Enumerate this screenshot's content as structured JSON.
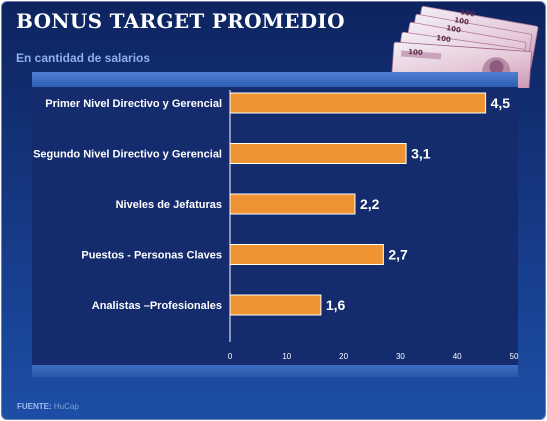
{
  "header": {
    "title": "BONUS TARGET PROMEDIO",
    "subtitle": "En cantidad de salarios"
  },
  "banknote": {
    "denomination": "100"
  },
  "chart_data": {
    "type": "bar",
    "orientation": "horizontal",
    "title": "",
    "xlabel": "",
    "ylabel": "",
    "categories": [
      "Primer Nivel Directivo y Gerencial",
      "Segundo Nivel Directivo y Gerencial",
      "Niveles de Jefaturas",
      "Puestos - Personas Claves",
      "Analistas –Profesionales"
    ],
    "values": [
      4.5,
      3.1,
      2.2,
      2.7,
      1.6
    ],
    "value_labels": [
      "4,5",
      "3,1",
      "2,2",
      "2,7",
      "1,6"
    ],
    "axis_scale_multiplier": 10,
    "xlim": [
      0,
      50
    ],
    "xticks": [
      "0",
      "10",
      "20",
      "30",
      "40",
      "50"
    ],
    "grid": false,
    "colors": {
      "bar": "#ef9433",
      "bar_edge": "#ffffff",
      "axis": "#ffffff",
      "panel": "#142b6e",
      "label_text": "#ffffff",
      "tick_text": "#ffffff"
    }
  },
  "footer": {
    "source_label": "FUENTE:",
    "source_text": "HuCap"
  }
}
